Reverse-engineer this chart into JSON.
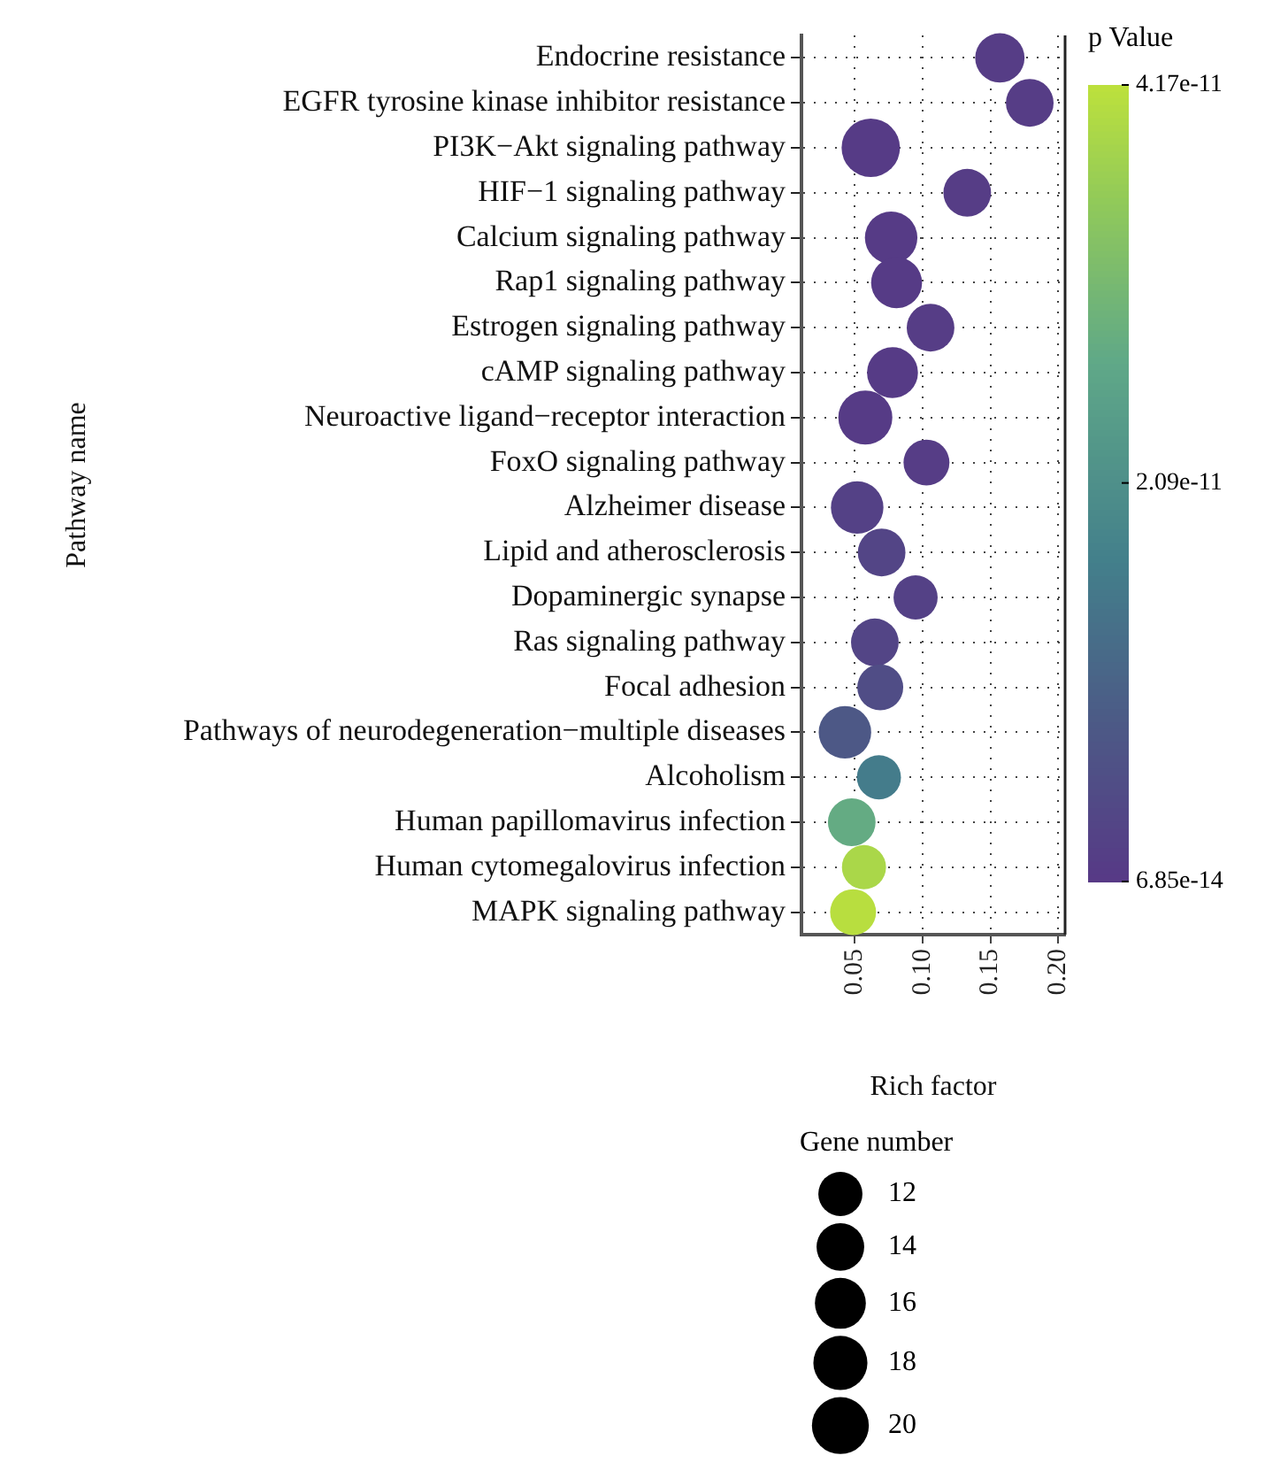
{
  "chart_data": {
    "type": "bubble",
    "orientation": "horizontal",
    "xlabel": "Rich factor",
    "ylabel": "Pathway name",
    "clabel": "p Value",
    "legend_title": "Gene number",
    "categories": [
      "Endocrine resistance",
      "EGFR tyrosine kinase inhibitor resistance",
      "PI3K−Akt signaling pathway",
      "HIF−1 signaling pathway",
      "Calcium signaling pathway",
      "Rap1 signaling pathway",
      "Estrogen signaling pathway",
      "cAMP signaling pathway",
      "Neuroactive ligand−receptor interaction",
      "FoxO signaling pathway",
      "Alzheimer disease",
      "Lipid and atherosclerosis",
      "Dopaminergic synapse",
      "Ras signaling pathway",
      "Focal adhesion",
      "Pathways of neurodegeneration−multiple diseases",
      "Alcoholism",
      "Human papillomavirus infection",
      "Human cytomegalovirus infection",
      "MAPK signaling pathway"
    ],
    "values": [
      0.157,
      0.179,
      0.062,
      0.133,
      0.077,
      0.081,
      0.106,
      0.078,
      0.058,
      0.103,
      0.052,
      0.07,
      0.095,
      0.065,
      0.069,
      0.043,
      0.068,
      0.048,
      0.057,
      0.049
    ],
    "sizes": [
      15,
      14,
      21,
      14,
      17,
      16,
      14,
      16,
      18,
      13,
      17,
      14,
      12,
      14,
      13,
      17,
      12,
      14,
      12,
      13
    ],
    "size_legend": [
      12,
      14,
      16,
      18,
      20
    ],
    "cvalues": [
      1e-12,
      1e-12,
      5e-13,
      1e-12,
      5e-13,
      5e-13,
      1e-12,
      5e-13,
      5e-13,
      1e-12,
      2e-12,
      3e-12,
      2e-12,
      3e-12,
      5e-12,
      8e-12,
      1.6e-11,
      2.8e-11,
      3.9e-11,
      4.1e-11
    ],
    "clim": [
      6.85e-14,
      4.17e-11
    ],
    "cticks": [
      {
        "value": 6.85e-14,
        "label": "6.85e-14"
      },
      {
        "value": 2.09e-11,
        "label": "2.09e-11"
      },
      {
        "value": 4.17e-11,
        "label": "4.17e-11"
      }
    ],
    "xlim": [
      0.011,
      0.205
    ],
    "xticks": [
      0.05,
      {
        "value": 0.1,
        "label": "0.10"
      },
      0.15,
      {
        "value": 0.2,
        "label": "0.20"
      }
    ],
    "grid": true,
    "line_style": "dotted"
  }
}
